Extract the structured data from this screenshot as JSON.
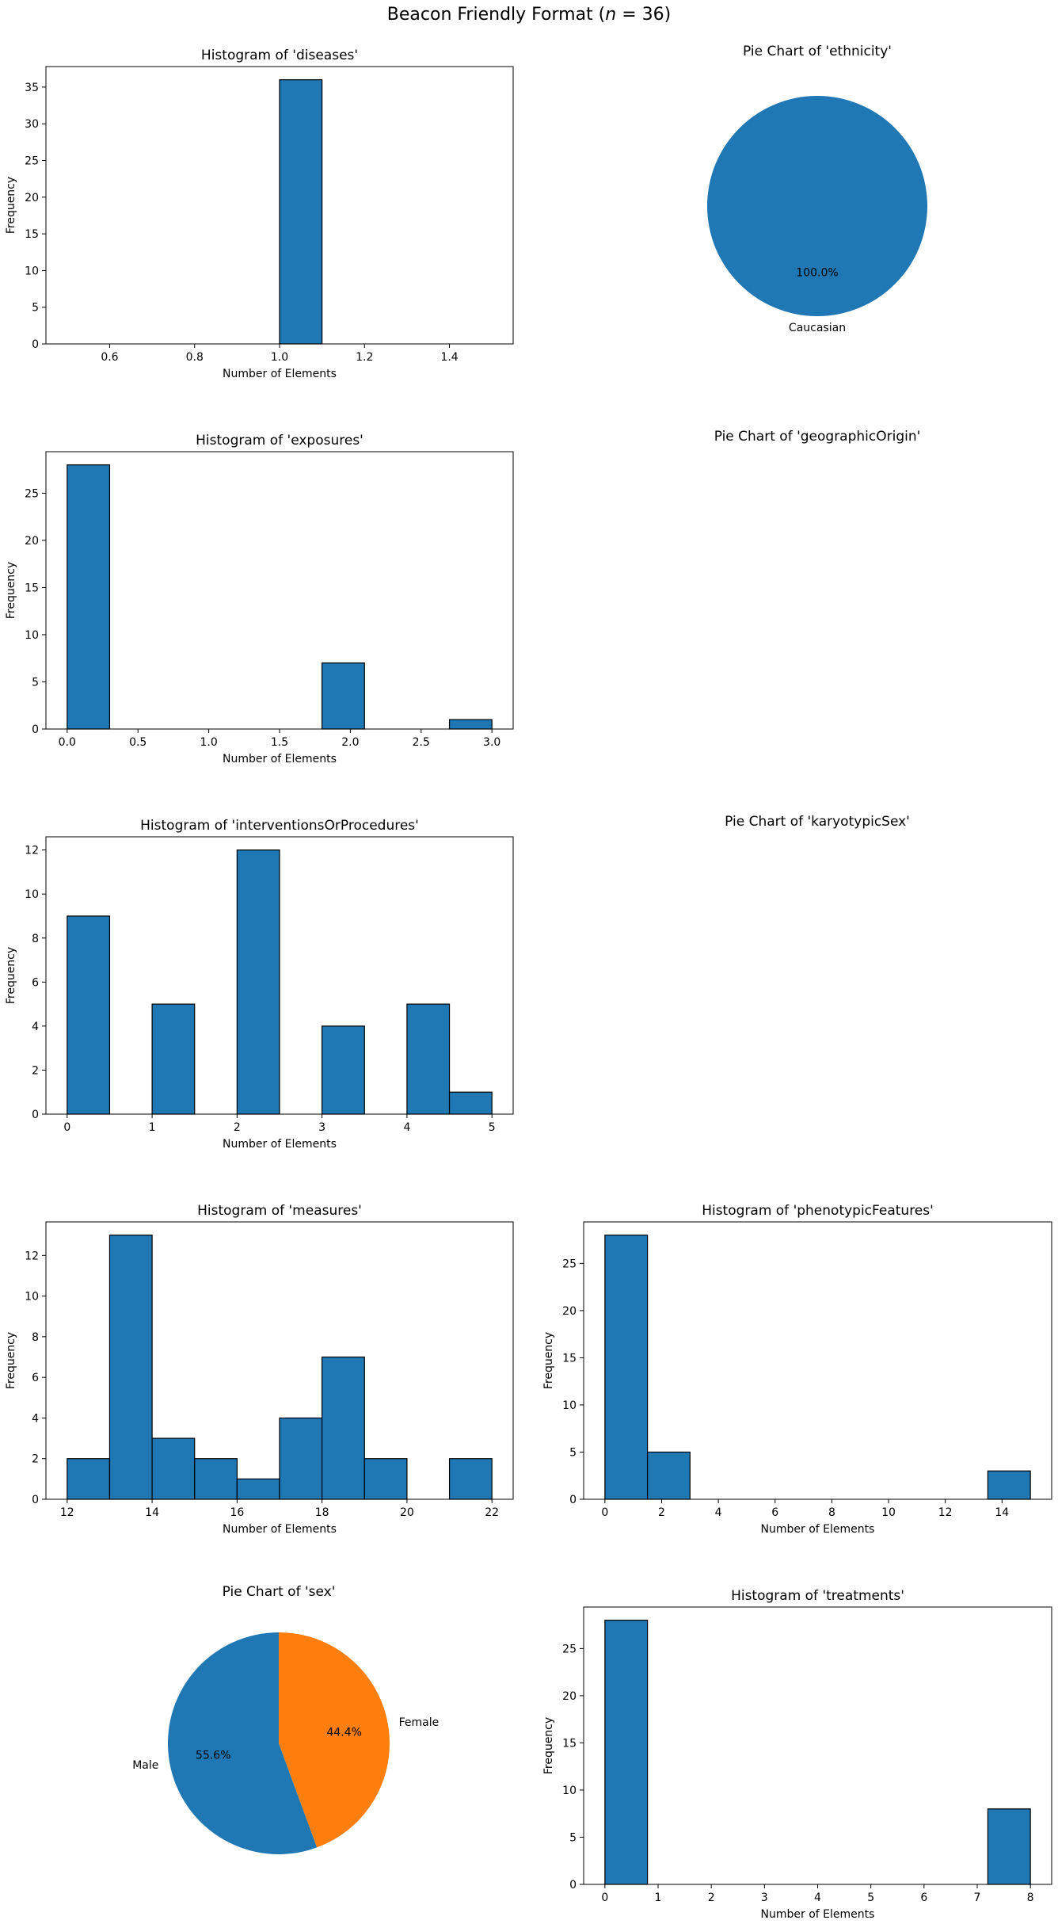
{
  "figure": {
    "title_prefix": "Beacon Friendly Format (",
    "title_var": "n",
    "title_suffix": " = 36)"
  },
  "chart_data": [
    {
      "id": "diseases",
      "type": "bar",
      "title": "Histogram of 'diseases'",
      "xlabel": "Number of Elements",
      "ylabel": "Frequency",
      "xlim": [
        0.45,
        1.55
      ],
      "ylim": [
        0,
        37.8
      ],
      "xticks": [
        0.6,
        0.8,
        1.0,
        1.2,
        1.4
      ],
      "xtick_labels": [
        "0.6",
        "0.8",
        "1.0",
        "1.2",
        "1.4"
      ],
      "yticks": [
        0,
        5,
        10,
        15,
        20,
        25,
        30,
        35
      ],
      "ytick_labels": [
        "0",
        "5",
        "10",
        "15",
        "20",
        "25",
        "30",
        "35"
      ],
      "bins": [
        {
          "x0": 1.0,
          "x1": 1.1,
          "count": 36
        }
      ]
    },
    {
      "id": "ethnicity",
      "type": "pie",
      "title": "Pie Chart of 'ethnicity'",
      "slices": [
        {
          "label": "Caucasian",
          "value": 100.0,
          "pct_label": "100.0%",
          "color": "#1f77b4"
        }
      ]
    },
    {
      "id": "exposures",
      "type": "bar",
      "title": "Histogram of 'exposures'",
      "xlabel": "Number of Elements",
      "ylabel": "Frequency",
      "xlim": [
        -0.15,
        3.15
      ],
      "ylim": [
        0,
        29.4
      ],
      "xticks": [
        0,
        0.5,
        1,
        1.5,
        2,
        2.5,
        3
      ],
      "xtick_labels": [
        "0.0",
        "0.5",
        "1.0",
        "1.5",
        "2.0",
        "2.5",
        "3.0"
      ],
      "yticks": [
        0,
        5,
        10,
        15,
        20,
        25
      ],
      "ytick_labels": [
        "0",
        "5",
        "10",
        "15",
        "20",
        "25"
      ],
      "bins": [
        {
          "x0": 0,
          "x1": 0.3,
          "count": 28
        },
        {
          "x0": 1.8,
          "x1": 2.1,
          "count": 7
        },
        {
          "x0": 2.7,
          "x1": 3.0,
          "count": 1
        }
      ]
    },
    {
      "id": "geographicOrigin",
      "type": "pie",
      "title": "Pie Chart of 'geographicOrigin'",
      "slices": []
    },
    {
      "id": "interventionsOrProcedures",
      "type": "bar",
      "title": "Histogram of 'interventionsOrProcedures'",
      "xlabel": "Number of Elements",
      "ylabel": "Frequency",
      "xlim": [
        -0.25,
        5.25
      ],
      "ylim": [
        0,
        12.6
      ],
      "xticks": [
        0,
        1,
        2,
        3,
        4,
        5
      ],
      "xtick_labels": [
        "0",
        "1",
        "2",
        "3",
        "4",
        "5"
      ],
      "yticks": [
        0,
        2,
        4,
        6,
        8,
        10,
        12
      ],
      "ytick_labels": [
        "0",
        "2",
        "4",
        "6",
        "8",
        "10",
        "12"
      ],
      "bins": [
        {
          "x0": 0,
          "x1": 0.5,
          "count": 9
        },
        {
          "x0": 1,
          "x1": 1.5,
          "count": 5
        },
        {
          "x0": 2,
          "x1": 2.5,
          "count": 12
        },
        {
          "x0": 3,
          "x1": 3.5,
          "count": 4
        },
        {
          "x0": 4,
          "x1": 4.5,
          "count": 5
        },
        {
          "x0": 4.5,
          "x1": 5.0,
          "count": 1
        }
      ]
    },
    {
      "id": "karyotypicSex",
      "type": "pie",
      "title": "Pie Chart of 'karyotypicSex'",
      "slices": []
    },
    {
      "id": "measures",
      "type": "bar",
      "title": "Histogram of 'measures'",
      "xlabel": "Number of Elements",
      "ylabel": "Frequency",
      "xlim": [
        11.5,
        22.5
      ],
      "ylim": [
        0,
        13.65
      ],
      "xticks": [
        12,
        14,
        16,
        18,
        20,
        22
      ],
      "xtick_labels": [
        "12",
        "14",
        "16",
        "18",
        "20",
        "22"
      ],
      "yticks": [
        0,
        2,
        4,
        6,
        8,
        10,
        12
      ],
      "ytick_labels": [
        "0",
        "2",
        "4",
        "6",
        "8",
        "10",
        "12"
      ],
      "bins": [
        {
          "x0": 12,
          "x1": 13,
          "count": 2
        },
        {
          "x0": 13,
          "x1": 14,
          "count": 13
        },
        {
          "x0": 14,
          "x1": 15,
          "count": 3
        },
        {
          "x0": 15,
          "x1": 16,
          "count": 2
        },
        {
          "x0": 16,
          "x1": 17,
          "count": 1
        },
        {
          "x0": 17,
          "x1": 18,
          "count": 4
        },
        {
          "x0": 18,
          "x1": 19,
          "count": 7
        },
        {
          "x0": 19,
          "x1": 20,
          "count": 2
        },
        {
          "x0": 21,
          "x1": 22,
          "count": 2
        }
      ]
    },
    {
      "id": "phenotypicFeatures",
      "type": "bar",
      "title": "Histogram of 'phenotypicFeatures'",
      "xlabel": "Number of Elements",
      "ylabel": "Frequency",
      "xlim": [
        -0.75,
        15.75
      ],
      "ylim": [
        0,
        29.4
      ],
      "xticks": [
        0,
        2,
        4,
        6,
        8,
        10,
        12,
        14
      ],
      "xtick_labels": [
        "0",
        "2",
        "4",
        "6",
        "8",
        "10",
        "12",
        "14"
      ],
      "yticks": [
        0,
        5,
        10,
        15,
        20,
        25
      ],
      "ytick_labels": [
        "0",
        "5",
        "10",
        "15",
        "20",
        "25"
      ],
      "bins": [
        {
          "x0": 0,
          "x1": 1.5,
          "count": 28
        },
        {
          "x0": 1.5,
          "x1": 3.0,
          "count": 5
        },
        {
          "x0": 13.5,
          "x1": 15.0,
          "count": 3
        }
      ]
    },
    {
      "id": "sex",
      "type": "pie",
      "title": "Pie Chart of 'sex'",
      "slices": [
        {
          "label": "Male",
          "value": 55.6,
          "pct_label": "55.6%",
          "color": "#1f77b4"
        },
        {
          "label": "Female",
          "value": 44.4,
          "pct_label": "44.4%",
          "color": "#ff7f0e"
        }
      ]
    },
    {
      "id": "treatments",
      "type": "bar",
      "title": "Histogram of 'treatments'",
      "xlabel": "Number of Elements",
      "ylabel": "Frequency",
      "xlim": [
        -0.4,
        8.4
      ],
      "ylim": [
        0,
        29.4
      ],
      "xticks": [
        0,
        1,
        2,
        3,
        4,
        5,
        6,
        7,
        8
      ],
      "xtick_labels": [
        "0",
        "1",
        "2",
        "3",
        "4",
        "5",
        "6",
        "7",
        "8"
      ],
      "yticks": [
        0,
        5,
        10,
        15,
        20,
        25
      ],
      "ytick_labels": [
        "0",
        "5",
        "10",
        "15",
        "20",
        "25"
      ],
      "bins": [
        {
          "x0": 0,
          "x1": 0.8,
          "count": 28
        },
        {
          "x0": 7.2,
          "x1": 8.0,
          "count": 8
        }
      ]
    }
  ],
  "colors": {
    "bar_fill": "#1f77b4",
    "bar_edge": "#000000"
  }
}
